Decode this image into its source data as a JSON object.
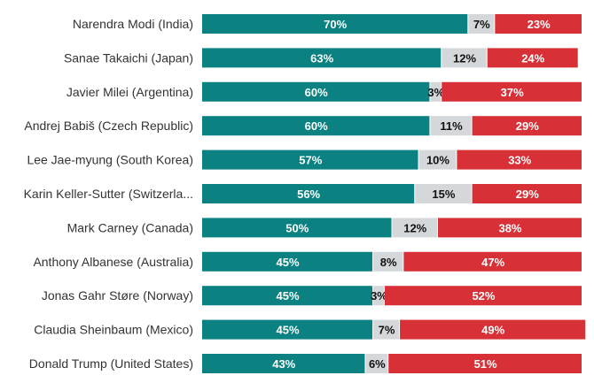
{
  "chart_data": {
    "type": "bar",
    "orientation": "horizontal",
    "stacked": true,
    "categories": [
      "Narendra Modi (India)",
      "Sanae Takaichi (Japan)",
      "Javier Milei (Argentina)",
      "Andrej Babiš (Czech Republic)",
      "Lee Jae-myung (South Korea)",
      "Karin Keller-Sutter (Switzerla...",
      "Mark Carney (Canada)",
      "Anthony Albanese (Australia)",
      "Jonas Gahr Støre (Norway)",
      "Claudia Sheinbaum (Mexico)",
      "Donald Trump (United States)"
    ],
    "series": [
      {
        "values": [
          70,
          63,
          60,
          60,
          57,
          56,
          50,
          45,
          45,
          45,
          43
        ],
        "color": "#0b8281"
      },
      {
        "values": [
          7,
          12,
          3,
          11,
          10,
          15,
          12,
          8,
          3,
          7,
          6
        ],
        "color": "#d4d8da"
      },
      {
        "values": [
          23,
          24,
          37,
          29,
          33,
          29,
          38,
          47,
          52,
          49,
          51
        ],
        "color": "#d73137"
      }
    ],
    "value_suffix": "%",
    "xlim": [
      0,
      100
    ],
    "grid": false,
    "legend": "none"
  }
}
